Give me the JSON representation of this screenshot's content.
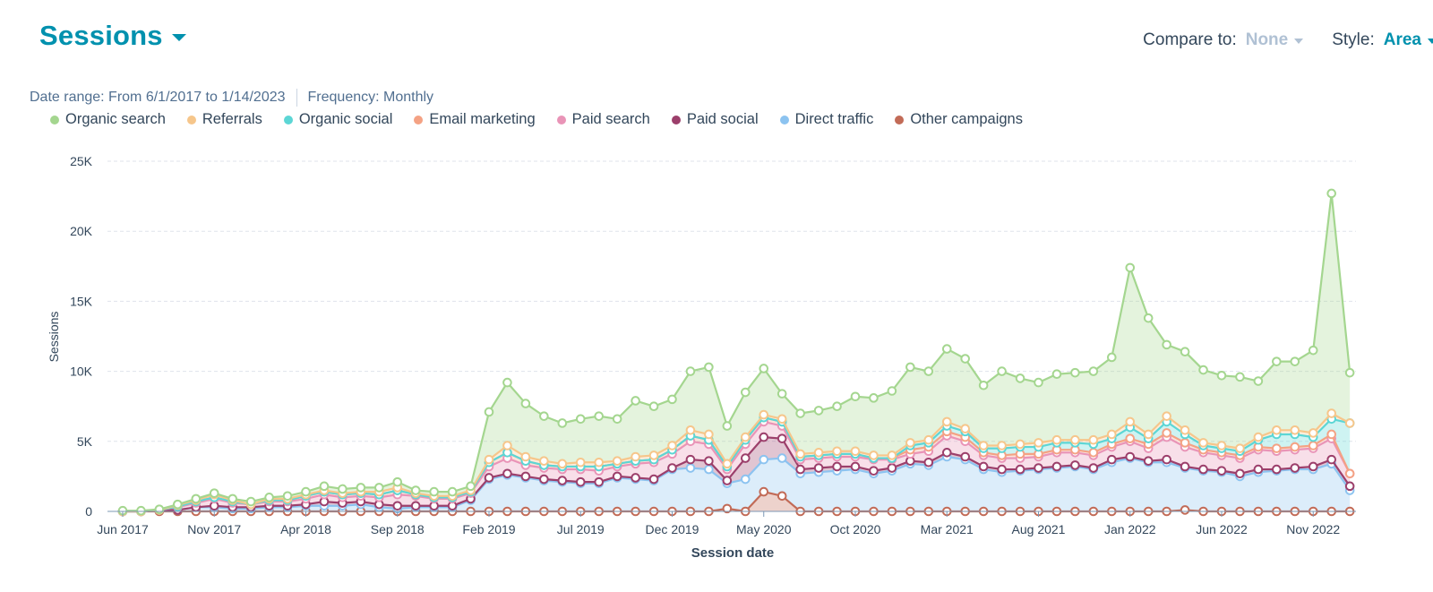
{
  "header": {
    "title": "Sessions",
    "compare_label": "Compare to:",
    "compare_value": "None",
    "style_label": "Style:",
    "style_value": "Area"
  },
  "meta": {
    "date_range": "Date range: From 6/1/2017 to 1/14/2023",
    "frequency": "Frequency: Monthly"
  },
  "chart_data": {
    "type": "area",
    "stacked": true,
    "xlabel": "Session date",
    "ylabel": "Sessions",
    "ylim": [
      0,
      25000
    ],
    "yticks": [
      0,
      5000,
      10000,
      15000,
      20000,
      25000
    ],
    "ytick_labels": [
      "0",
      "5K",
      "10K",
      "15K",
      "20K",
      "25K"
    ],
    "xtick_labels": [
      "Jun 2017",
      "Nov 2017",
      "Apr 2018",
      "Sep 2018",
      "Feb 2019",
      "Jul 2019",
      "Dec 2019",
      "May 2020",
      "Oct 2020",
      "Mar 2021",
      "Aug 2021",
      "Jan 2022",
      "Jun 2022",
      "Nov 2022"
    ],
    "xtick_indices": [
      0,
      5,
      10,
      15,
      20,
      25,
      30,
      35,
      40,
      45,
      50,
      55,
      60,
      65
    ],
    "grid": true,
    "legend_position": "top-left",
    "months": [
      "Jun 2017",
      "Jul 2017",
      "Aug 2017",
      "Sep 2017",
      "Oct 2017",
      "Nov 2017",
      "Dec 2017",
      "Jan 2018",
      "Feb 2018",
      "Mar 2018",
      "Apr 2018",
      "May 2018",
      "Jun 2018",
      "Jul 2018",
      "Aug 2018",
      "Sep 2018",
      "Oct 2018",
      "Nov 2018",
      "Dec 2018",
      "Jan 2019",
      "Feb 2019",
      "Mar 2019",
      "Apr 2019",
      "May 2019",
      "Jun 2019",
      "Jul 2019",
      "Aug 2019",
      "Sep 2019",
      "Oct 2019",
      "Nov 2019",
      "Dec 2019",
      "Jan 2020",
      "Feb 2020",
      "Mar 2020",
      "Apr 2020",
      "May 2020",
      "Jun 2020",
      "Jul 2020",
      "Aug 2020",
      "Sep 2020",
      "Oct 2020",
      "Nov 2020",
      "Dec 2020",
      "Jan 2021",
      "Feb 2021",
      "Mar 2021",
      "Apr 2021",
      "May 2021",
      "Jun 2021",
      "Jul 2021",
      "Aug 2021",
      "Sep 2021",
      "Oct 2021",
      "Nov 2021",
      "Dec 2021",
      "Jan 2022",
      "Feb 2022",
      "Mar 2022",
      "Apr 2022",
      "May 2022",
      "Jun 2022",
      "Jul 2022",
      "Aug 2022",
      "Sep 2022",
      "Oct 2022",
      "Nov 2022",
      "Dec 2022",
      "Jan 2023"
    ],
    "series": [
      {
        "name": "Other campaigns",
        "color": "#c26b57",
        "values": [
          0,
          0,
          0,
          0,
          0,
          0,
          0,
          0,
          0,
          0,
          0,
          0,
          0,
          0,
          0,
          0,
          0,
          0,
          0,
          0,
          0,
          0,
          0,
          0,
          0,
          0,
          0,
          0,
          0,
          0,
          0,
          0,
          0,
          200,
          0,
          1400,
          1100,
          0,
          0,
          0,
          0,
          0,
          0,
          0,
          0,
          0,
          0,
          0,
          0,
          0,
          0,
          0,
          0,
          0,
          0,
          0,
          0,
          0,
          100,
          0,
          0,
          0,
          0,
          0,
          0,
          0,
          0,
          0
        ]
      },
      {
        "name": "Direct traffic",
        "color": "#8cc3f0",
        "values": [
          0,
          0,
          100,
          100,
          300,
          300,
          200,
          200,
          300,
          300,
          400,
          400,
          400,
          500,
          300,
          200,
          300,
          300,
          300,
          800,
          2300,
          2600,
          2400,
          2200,
          2100,
          2000,
          2000,
          2400,
          2300,
          2200,
          3000,
          3100,
          3000,
          1800,
          2300,
          2300,
          2700,
          2700,
          2800,
          2900,
          3000,
          2700,
          2900,
          3400,
          3300,
          3900,
          3700,
          3000,
          2800,
          2900,
          3000,
          3100,
          3200,
          3000,
          3500,
          3800,
          3500,
          3500,
          3000,
          2900,
          2800,
          2500,
          2800,
          2900,
          3000,
          3000,
          3400,
          1500
        ]
      },
      {
        "name": "Paid social",
        "color": "#9c3f6b",
        "values": [
          0,
          0,
          0,
          0,
          0,
          100,
          100,
          100,
          100,
          100,
          100,
          300,
          200,
          200,
          200,
          200,
          100,
          100,
          100,
          100,
          100,
          100,
          100,
          100,
          100,
          100,
          100,
          100,
          100,
          100,
          100,
          600,
          600,
          200,
          1500,
          1600,
          1400,
          300,
          300,
          300,
          200,
          200,
          200,
          200,
          200,
          300,
          200,
          200,
          200,
          100,
          100,
          100,
          100,
          100,
          200,
          100,
          100,
          200,
          100,
          100,
          100,
          200,
          200,
          100,
          100,
          200,
          300,
          300
        ]
      },
      {
        "name": "Paid search",
        "color": "#e994b7",
        "values": [
          0,
          0,
          0,
          200,
          300,
          500,
          300,
          200,
          300,
          300,
          400,
          500,
          400,
          400,
          500,
          800,
          700,
          500,
          500,
          400,
          800,
          1100,
          800,
          800,
          800,
          900,
          800,
          700,
          1000,
          1200,
          1000,
          1300,
          1200,
          800,
          1000,
          1100,
          900,
          700,
          700,
          700,
          700,
          800,
          600,
          500,
          800,
          1200,
          1100,
          800,
          800,
          800,
          800,
          1000,
          900,
          900,
          900,
          1100,
          900,
          1600,
          1400,
          1200,
          1100,
          1100,
          1400,
          1300,
          1300,
          1300,
          1500,
          900
        ]
      },
      {
        "name": "Email marketing",
        "color": "#f4a284",
        "values": [
          0,
          0,
          0,
          50,
          100,
          100,
          100,
          0,
          100,
          100,
          200,
          200,
          200,
          200,
          200,
          300,
          100,
          100,
          100,
          100,
          300,
          400,
          300,
          200,
          200,
          200,
          300,
          200,
          200,
          200,
          300,
          400,
          300,
          200,
          300,
          300,
          300,
          200,
          200,
          200,
          200,
          100,
          100,
          300,
          300,
          300,
          300,
          200,
          200,
          300,
          200,
          200,
          200,
          200,
          200,
          200,
          300,
          300,
          300,
          200,
          200,
          200,
          200,
          200,
          200,
          200,
          300,
          0
        ]
      },
      {
        "name": "Organic social",
        "color": "#5cd6d5",
        "values": [
          0,
          0,
          0,
          0,
          0,
          0,
          0,
          0,
          0,
          0,
          0,
          0,
          0,
          0,
          0,
          0,
          0,
          0,
          0,
          0,
          0,
          0,
          0,
          0,
          0,
          0,
          0,
          0,
          0,
          0,
          0,
          0,
          0,
          0,
          0,
          0,
          0,
          0,
          0,
          0,
          0,
          0,
          0,
          300,
          300,
          400,
          400,
          300,
          500,
          500,
          500,
          500,
          500,
          600,
          400,
          800,
          400,
          800,
          600,
          300,
          300,
          300,
          500,
          1000,
          900,
          600,
          1100,
          3600
        ]
      },
      {
        "name": "Referrals",
        "color": "#f6c68b",
        "values": [
          0,
          0,
          0,
          100,
          100,
          200,
          100,
          0,
          100,
          100,
          100,
          100,
          100,
          100,
          200,
          200,
          100,
          100,
          100,
          100,
          200,
          500,
          300,
          300,
          200,
          300,
          300,
          200,
          300,
          300,
          300,
          400,
          400,
          200,
          200,
          200,
          200,
          200,
          200,
          200,
          200,
          200,
          200,
          200,
          200,
          300,
          200,
          200,
          200,
          200,
          300,
          200,
          200,
          300,
          300,
          400,
          300,
          400,
          300,
          200,
          200,
          200,
          200,
          300,
          300,
          300,
          400,
          0
        ]
      },
      {
        "name": "Organic search",
        "color": "#a4d68f",
        "values": [
          50,
          50,
          50,
          50,
          100,
          100,
          100,
          200,
          100,
          200,
          200,
          300,
          300,
          300,
          300,
          400,
          200,
          300,
          300,
          300,
          3400,
          4500,
          3800,
          3200,
          2900,
          3100,
          3300,
          3000,
          4000,
          3500,
          3300,
          4200,
          4800,
          2700,
          3200,
          3300,
          1800,
          2900,
          3000,
          3200,
          3900,
          4100,
          4600,
          5400,
          4900,
          5200,
          5000,
          4300,
          5300,
          4700,
          4300,
          4700,
          4800,
          4900,
          5500,
          11000,
          8300,
          5100,
          5600,
          5200,
          5000,
          5100,
          4000,
          4900,
          4900,
          5900,
          15700,
          3600
        ]
      }
    ],
    "legend_order": [
      "Organic search",
      "Referrals",
      "Organic social",
      "Email marketing",
      "Paid search",
      "Paid social",
      "Direct traffic",
      "Other campaigns"
    ]
  }
}
